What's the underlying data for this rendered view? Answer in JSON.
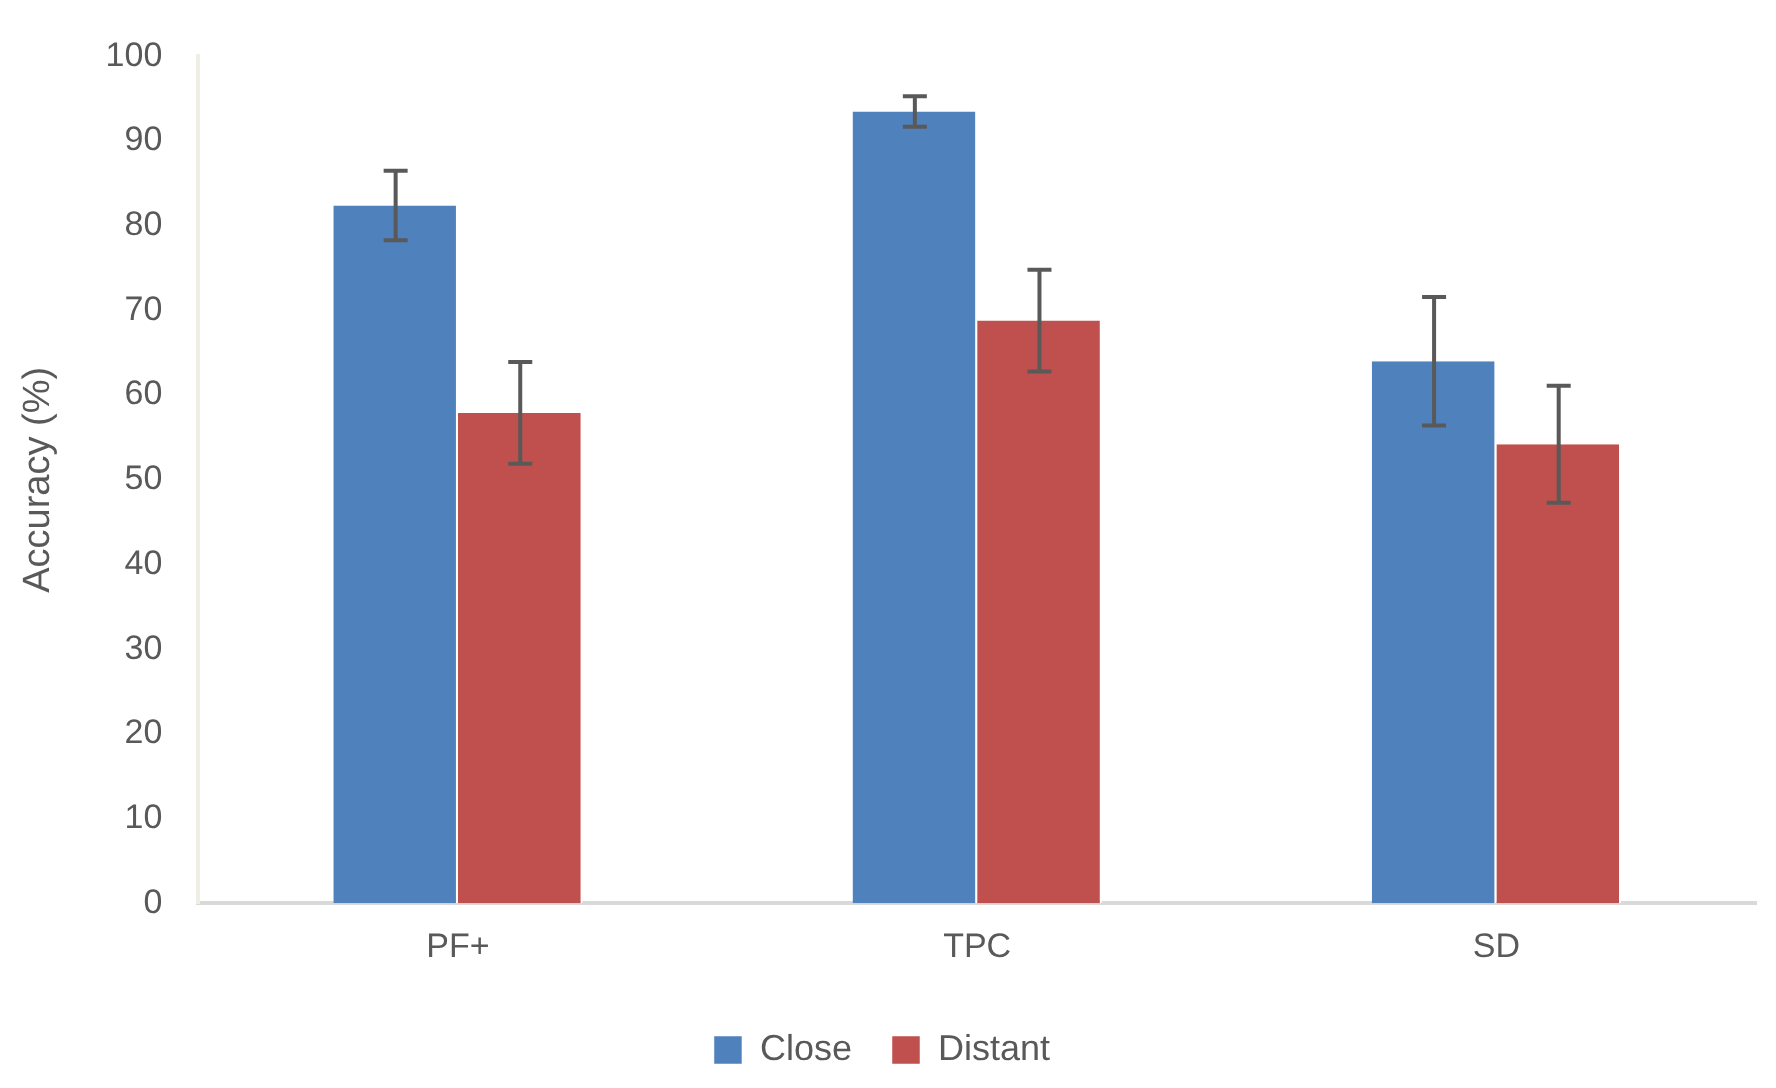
{
  "chart_data": {
    "type": "bar",
    "ylabel": "Accuracy (%)",
    "categories": [
      "PF+",
      "TPC",
      "SD"
    ],
    "series": [
      {
        "name": "Close",
        "color": "#4f81bd",
        "values": [
          82.4,
          93.5,
          64.0
        ],
        "errors": [
          4.1,
          1.8,
          7.6
        ]
      },
      {
        "name": "Distant",
        "color": "#c0504d",
        "values": [
          57.9,
          68.8,
          54.2
        ],
        "errors": [
          6.0,
          6.0,
          6.9
        ]
      }
    ],
    "ylim": [
      0,
      100
    ],
    "yticks": [
      0,
      10,
      20,
      30,
      40,
      50,
      60,
      70,
      80,
      90,
      100
    ],
    "grid": false,
    "legend": "bottom"
  }
}
